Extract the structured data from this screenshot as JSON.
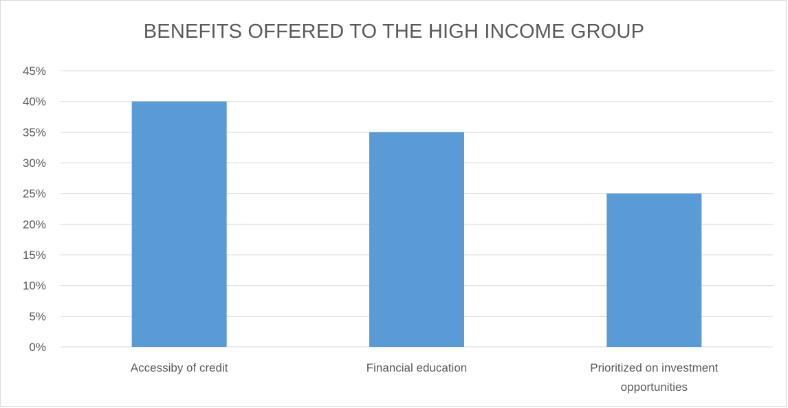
{
  "chart_data": {
    "type": "bar",
    "title": "BENEFITS OFFERED TO THE HIGH INCOME GROUP",
    "categories": [
      [
        "Accessiby of credit"
      ],
      [
        "Financial education"
      ],
      [
        "Prioritized on investment",
        "opportunities"
      ]
    ],
    "values": [
      0.4,
      0.35,
      0.25
    ],
    "ylim": [
      0,
      0.45
    ],
    "yticks": [
      "0%",
      "5%",
      "10%",
      "15%",
      "20%",
      "25%",
      "30%",
      "35%",
      "40%",
      "45%"
    ],
    "grid": true,
    "bar_color": "#5b9bd5",
    "grid_color": "#d9d9d9",
    "text_color": "#595959"
  }
}
